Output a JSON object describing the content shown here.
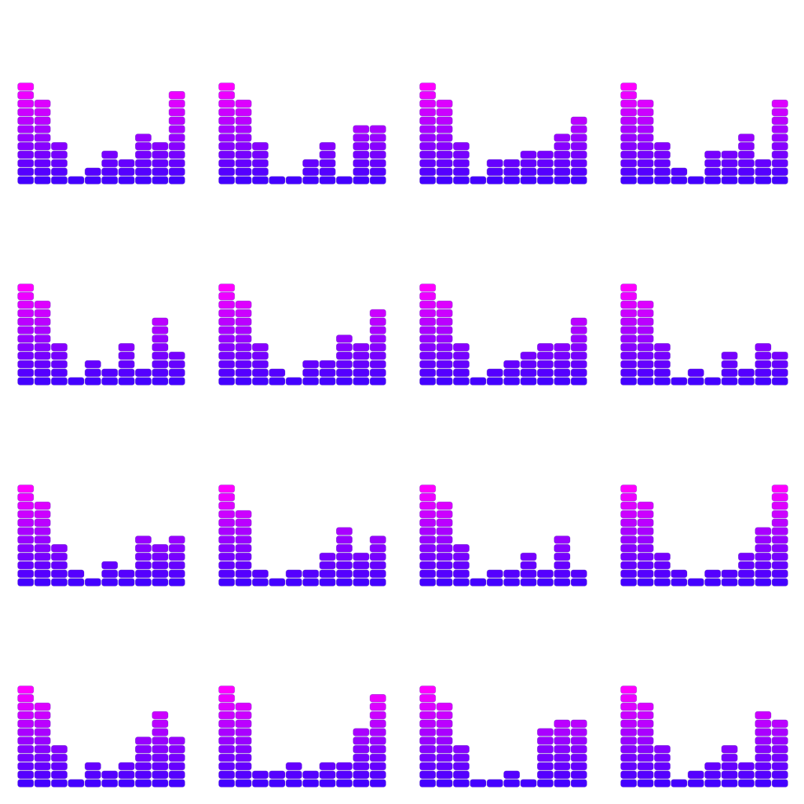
{
  "chart_data": {
    "type": "bar",
    "description_style": "segmented-equalizer",
    "max_level": 12,
    "colors": {
      "low": "#4400ff",
      "high": "#ff00ff",
      "outline": "#3a0aa8"
    },
    "panels": [
      {
        "values": [
          12,
          10,
          5,
          1,
          2,
          4,
          3,
          6,
          5,
          11
        ]
      },
      {
        "values": [
          12,
          10,
          5,
          1,
          1,
          3,
          5,
          1,
          7,
          7
        ]
      },
      {
        "values": [
          12,
          10,
          5,
          1,
          3,
          3,
          4,
          4,
          6,
          8
        ]
      },
      {
        "values": [
          12,
          10,
          5,
          2,
          1,
          4,
          4,
          6,
          3,
          10
        ]
      },
      {
        "values": [
          12,
          10,
          5,
          1,
          3,
          2,
          5,
          2,
          8,
          4
        ]
      },
      {
        "values": [
          12,
          10,
          5,
          2,
          1,
          3,
          3,
          6,
          5,
          9
        ]
      },
      {
        "values": [
          12,
          10,
          5,
          1,
          2,
          3,
          4,
          5,
          5,
          8
        ]
      },
      {
        "values": [
          12,
          10,
          5,
          1,
          2,
          1,
          4,
          2,
          5,
          4
        ]
      },
      {
        "values": [
          12,
          10,
          5,
          2,
          1,
          3,
          2,
          6,
          5,
          6
        ]
      },
      {
        "values": [
          12,
          9,
          2,
          1,
          2,
          2,
          4,
          7,
          4,
          6
        ]
      },
      {
        "values": [
          12,
          10,
          5,
          1,
          2,
          2,
          4,
          2,
          6,
          2
        ]
      },
      {
        "values": [
          12,
          10,
          4,
          2,
          1,
          2,
          2,
          4,
          7,
          12
        ]
      },
      {
        "values": [
          12,
          10,
          5,
          1,
          3,
          2,
          3,
          6,
          9,
          6
        ]
      },
      {
        "values": [
          12,
          10,
          2,
          2,
          3,
          2,
          3,
          3,
          7,
          11
        ]
      },
      {
        "values": [
          12,
          10,
          5,
          1,
          1,
          2,
          1,
          7,
          8,
          8
        ]
      },
      {
        "values": [
          12,
          10,
          5,
          1,
          2,
          3,
          5,
          3,
          9,
          8
        ]
      }
    ]
  }
}
